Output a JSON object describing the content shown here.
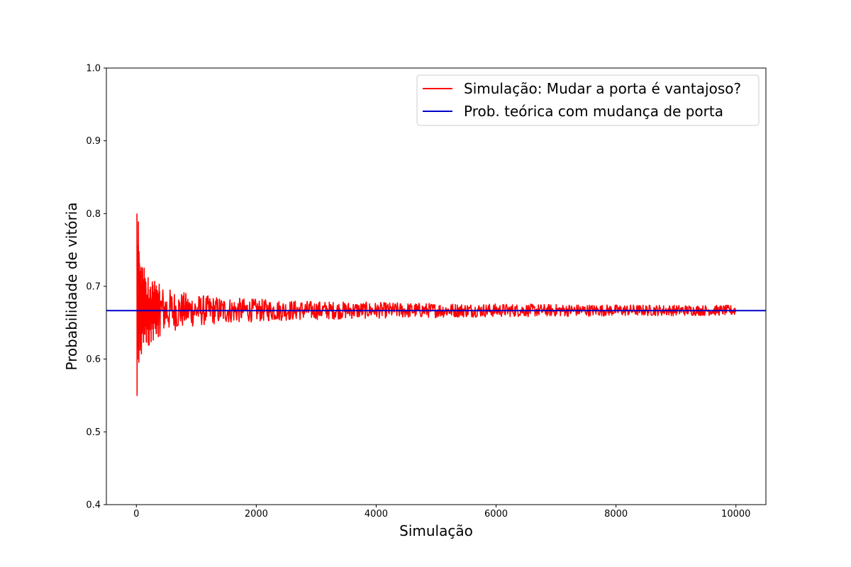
{
  "chart_data": {
    "type": "line",
    "title": "",
    "xlabel": "Simulação",
    "ylabel": "Probabilidade de vitória",
    "xlim": [
      -500,
      10500
    ],
    "ylim": [
      0.4,
      1.0
    ],
    "x_ticks": [
      0,
      2000,
      4000,
      6000,
      8000,
      10000
    ],
    "y_ticks": [
      0.4,
      0.5,
      0.6,
      0.7,
      0.8,
      0.9,
      1.0
    ],
    "grid": false,
    "legend_position": "top-right",
    "series": [
      {
        "name": "Simulação: Mudar a porta é vantajoso?",
        "color": "#ff0000",
        "x_range": [
          10,
          10000
        ],
        "start_value": 0.8,
        "converges_to": 0.667,
        "min_value": 0.55,
        "max_value": 0.8
      },
      {
        "name": "Prob. teórica com mudança de porta",
        "color": "#0000cc",
        "y": 0.6667
      }
    ]
  }
}
